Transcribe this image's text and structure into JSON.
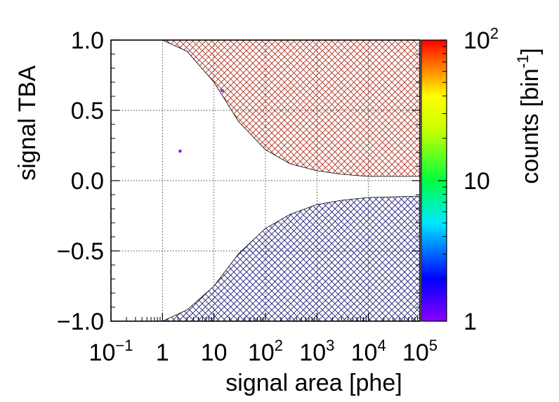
{
  "chart_data": {
    "type": "heatmap",
    "title": "",
    "xlabel": "signal area [phe]",
    "ylabel": "signal TBA",
    "xscale": "log",
    "xlim": [
      0.1,
      100000
    ],
    "ylim": [
      -1.0,
      1.0
    ],
    "grid": true,
    "x_ticks": [
      {
        "value": 0.1,
        "base": "10",
        "exp": "−1"
      },
      {
        "value": 1,
        "base": "1",
        "exp": ""
      },
      {
        "value": 10,
        "base": "10",
        "exp": ""
      },
      {
        "value": 100,
        "base": "10",
        "exp": "2"
      },
      {
        "value": 1000,
        "base": "10",
        "exp": "3"
      },
      {
        "value": 10000,
        "base": "10",
        "exp": "4"
      },
      {
        "value": 100000,
        "base": "10",
        "exp": "5"
      }
    ],
    "y_ticks": [
      {
        "value": 1.0,
        "label": "1.0"
      },
      {
        "value": 0.5,
        "label": "0.5"
      },
      {
        "value": 0.0,
        "label": "0.0"
      },
      {
        "value": -0.5,
        "label": "−0.5"
      },
      {
        "value": -1.0,
        "label": "−1.0"
      }
    ],
    "colorbar": {
      "label_main": "counts [bin",
      "label_exp": "-1",
      "label_close": "]",
      "scale": "log",
      "range": [
        1,
        100
      ],
      "ticks": [
        {
          "value": 100,
          "base": "10",
          "exp": "2"
        },
        {
          "value": 10,
          "base": "10",
          "exp": ""
        },
        {
          "value": 1,
          "base": "1",
          "exp": ""
        }
      ]
    },
    "points": [
      {
        "x": 2.2,
        "y": 0.21,
        "count": 1,
        "color": "#8a1cff"
      },
      {
        "x": 14.5,
        "y": 0.64,
        "count": 1,
        "color": "#8a1cff"
      }
    ],
    "excluded_regions": [
      {
        "name": "upper",
        "color": "#b03020",
        "boundary": [
          [
            1,
            1.0
          ],
          [
            3,
            0.92
          ],
          [
            10,
            0.7
          ],
          [
            30,
            0.42
          ],
          [
            100,
            0.22
          ],
          [
            300,
            0.12
          ],
          [
            1000,
            0.07
          ],
          [
            3000,
            0.045
          ],
          [
            10000,
            0.03
          ],
          [
            100000,
            0.03
          ]
        ]
      },
      {
        "name": "lower",
        "color": "#1c1c7a",
        "boundary": [
          [
            1,
            -1.0
          ],
          [
            3,
            -0.92
          ],
          [
            10,
            -0.75
          ],
          [
            30,
            -0.52
          ],
          [
            100,
            -0.34
          ],
          [
            300,
            -0.24
          ],
          [
            1000,
            -0.17
          ],
          [
            3000,
            -0.14
          ],
          [
            10000,
            -0.12
          ],
          [
            100000,
            -0.11
          ]
        ]
      }
    ]
  }
}
